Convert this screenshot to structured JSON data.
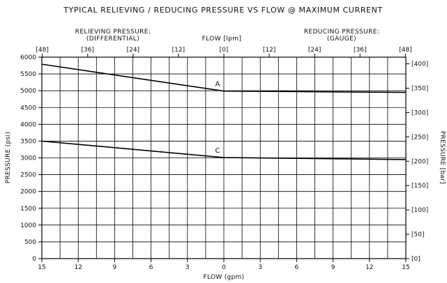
{
  "chart_data": {
    "type": "line",
    "title": "TYPICAL RELIEVING / REDUCING PRESSURE VS FLOW @ MAXIMUM CURRENT",
    "top_left_header": [
      "RELIEVING PRESSURE:",
      "(DIFFERENTIAL)"
    ],
    "top_center_header": "FLOW [lpm]",
    "top_right_header": [
      "REDUCING PRESSURE:",
      "(GAUGE)"
    ],
    "xlabel": "FLOW (gpm)",
    "ylabel": "PRESSURE (psi)",
    "ylabel_right": "PRESSURE [bar]",
    "x_tick_labels": [
      "15",
      "12",
      "9",
      "6",
      "3",
      "0",
      "3",
      "6",
      "9",
      "12",
      "15"
    ],
    "top_tick_labels": [
      "[48]",
      "[36]",
      "[24]",
      "[12]",
      "[0]",
      "[12]",
      "[24]",
      "[36]",
      "[48]"
    ],
    "y_ticks": [
      0,
      500,
      1000,
      1500,
      2000,
      2500,
      3000,
      3500,
      4000,
      4500,
      5000,
      5500,
      6000
    ],
    "right_tick_labels": [
      "[0]",
      "[50]",
      "[100]",
      "[150]",
      "[200]",
      "[250]",
      "[300]",
      "[350]",
      "[400]"
    ],
    "ylim": [
      0,
      6000
    ],
    "grid": true,
    "series": [
      {
        "name": "A",
        "x": [
          -15,
          0,
          15
        ],
        "values": [
          5790,
          4990,
          4950
        ]
      },
      {
        "name": "C",
        "x": [
          -15,
          0,
          15
        ],
        "values": [
          3500,
          3010,
          2950
        ]
      }
    ]
  }
}
